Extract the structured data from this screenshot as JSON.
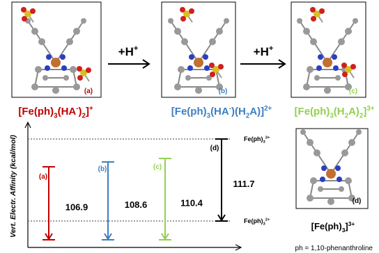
{
  "molecule_panels": [
    {
      "tag": "(a)",
      "color": "#c00000"
    },
    {
      "tag": "(b)",
      "color": "#3d7fc1"
    },
    {
      "tag": "(c)",
      "color": "#92d050"
    },
    {
      "tag": "(d)",
      "color": "#000000"
    }
  ],
  "step_labels": [
    [
      {
        "text": "+H"
      },
      {
        "text": "+",
        "sup": true
      }
    ],
    [
      {
        "text": "+H"
      },
      {
        "text": "+",
        "sup": true
      }
    ]
  ],
  "species": [
    {
      "color": "#c00000",
      "formula": [
        {
          "text": "[Fe(ph)"
        },
        {
          "text": "3",
          "sub": true
        },
        {
          "text": "(HA"
        },
        {
          "text": "-",
          "sup": true
        },
        {
          "text": ")"
        },
        {
          "text": "2",
          "sub": true
        },
        {
          "text": "]"
        },
        {
          "text": "+",
          "sup": true
        }
      ]
    },
    {
      "color": "#3d7fc1",
      "formula": [
        {
          "text": "[Fe(ph)"
        },
        {
          "text": "3",
          "sub": true
        },
        {
          "text": "(HA"
        },
        {
          "text": "-",
          "sup": true
        },
        {
          "text": ")(H"
        },
        {
          "text": "2",
          "sub": true
        },
        {
          "text": "A)]"
        },
        {
          "text": "2+",
          "sup": true
        }
      ]
    },
    {
      "color": "#92d050",
      "formula": [
        {
          "text": "[Fe(ph)"
        },
        {
          "text": "3",
          "sub": true
        },
        {
          "text": "(H"
        },
        {
          "text": "2",
          "sub": true
        },
        {
          "text": "A)"
        },
        {
          "text": "2",
          "sub": true
        },
        {
          "text": "]"
        },
        {
          "text": "3+",
          "sup": true
        }
      ]
    },
    {
      "color": "#000000",
      "formula": [
        {
          "text": "[Fe(ph)"
        },
        {
          "text": "3",
          "sub": true
        },
        {
          "text": "]"
        },
        {
          "text": "3+",
          "sup": true
        }
      ]
    }
  ],
  "energy_diagram": {
    "y_axis_label": "Vert. Electr. Affinity (kcal/mol)",
    "levels": [
      [
        {
          "text": "Fe(ph)"
        },
        {
          "text": "3",
          "sub": true
        },
        {
          "text": "3+",
          "sup": true
        }
      ],
      [
        {
          "text": "Fe(ph)"
        },
        {
          "text": "3",
          "sub": true
        },
        {
          "text": "2+",
          "sup": true
        }
      ]
    ],
    "arrows": [
      {
        "tag": "(a)",
        "value": 106.9,
        "color": "#c00000"
      },
      {
        "tag": "(b)",
        "value": 108.6,
        "color": "#3d7fc1"
      },
      {
        "tag": "(c)",
        "value": 110.4,
        "color": "#92d050"
      },
      {
        "tag": "(d)",
        "value": 111.7,
        "color": "#000000"
      }
    ],
    "note": "ph = 1,10-phenanthroline"
  }
}
